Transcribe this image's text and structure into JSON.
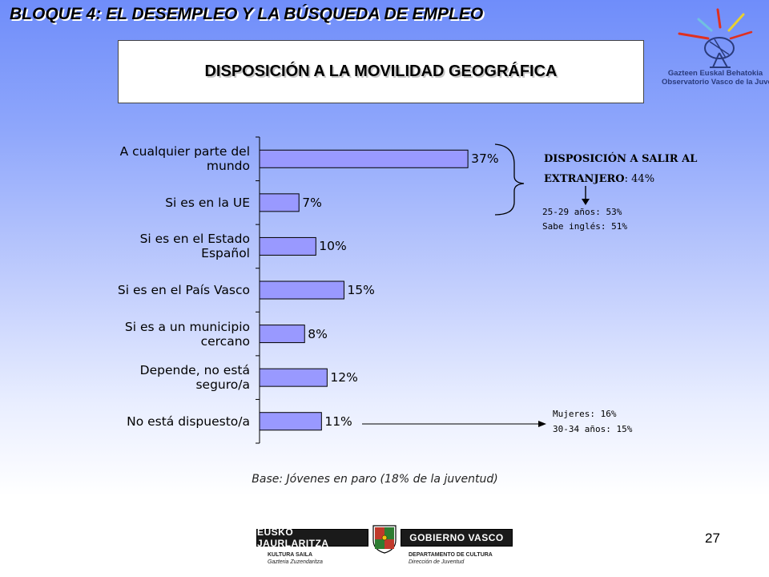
{
  "slide": {
    "header_title": "BLOQUE 4: EL DESEMPLEO Y LA BÚSQUEDA DE EMPLEO",
    "page_number": "27",
    "logo": {
      "line1": "Gazteen Euskal Behatokia",
      "line2": "Observatorio Vasco de la Juventud"
    },
    "footer": {
      "left_band": "EUSKO JAURLARITZA",
      "right_band": "GOBIERNO VASCO",
      "left_dept": "KULTURA SAILA",
      "left_sub": "Gazteria Zuzendaritza",
      "right_dept": "DEPARTAMENTO DE CULTURA",
      "right_sub": "Dirección de Juventud"
    },
    "colors": {
      "bar_fill": "#9999ff",
      "bar_stroke": "#000000",
      "background_top": "#6f8dfa",
      "background_bottom": "#ffffff"
    }
  },
  "chart_data": {
    "type": "bar",
    "orientation": "horizontal",
    "title": "DISPOSICIÓN A LA MOVILIDAD GEOGRÁFICA",
    "categories": [
      "A cualquier parte del\nmundo",
      "Si es en la UE",
      "Si es en el Estado\nEspañol",
      "Si es en el País Vasco",
      "Si es a un municipio\ncercano",
      "Depende, no está\nseguro/a",
      "No está dispuesto/a"
    ],
    "values": [
      37,
      7,
      10,
      15,
      8,
      12,
      11
    ],
    "value_labels": [
      "37%",
      "7%",
      "10%",
      "15%",
      "8%",
      "12%",
      "11%"
    ],
    "xlim": [
      0,
      100
    ],
    "grid": false,
    "legend": "none",
    "annotations": {
      "abroad_heading_line1": "DISPOSICIÓN A SALIR AL",
      "abroad_heading_line2": "EXTRANJERO",
      "abroad_value": ": 44%",
      "abroad_detail1": "25-29 años: 53%",
      "abroad_detail2": "Sabe inglés: 51%",
      "not_willing_detail1": "Mujeres: 16%",
      "not_willing_detail2": "30-34 años: 15%"
    },
    "base_note": "Base: Jóvenes en paro (18% de la juventud)"
  }
}
